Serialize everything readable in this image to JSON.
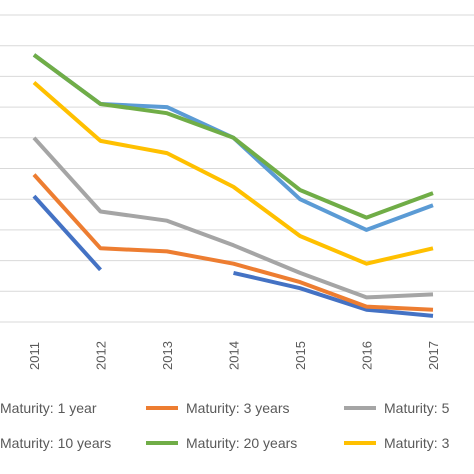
{
  "chart_data": {
    "type": "line",
    "x": [
      "2011",
      "2012",
      "2013",
      "2014",
      "2015",
      "2016",
      "2017"
    ],
    "series": [
      {
        "name": "Maturity: 1 year",
        "color": "#4472C4",
        "values": [
          3.6,
          1.2,
          null,
          1.1,
          0.6,
          -0.1,
          -0.3
        ]
      },
      {
        "name": "Maturity: 3 years",
        "color": "#ED7D31",
        "values": [
          4.3,
          1.9,
          1.8,
          1.4,
          0.8,
          0.0,
          -0.1
        ]
      },
      {
        "name": "Maturity: 5",
        "color": "#A5A5A5",
        "values": [
          5.5,
          3.1,
          2.8,
          2.0,
          1.1,
          0.3,
          0.4
        ]
      },
      {
        "name": "Maturity: 10 years",
        "color": "#5B9BD5",
        "values": [
          8.2,
          6.6,
          6.5,
          5.5,
          3.5,
          2.5,
          3.3
        ]
      },
      {
        "name": "Maturity: 20 years",
        "color": "#70AD47",
        "values": [
          8.2,
          6.6,
          6.3,
          5.5,
          3.8,
          2.9,
          3.7
        ]
      },
      {
        "name": "Maturity: 3",
        "color": "#FFC000",
        "values": [
          7.3,
          5.4,
          5.0,
          3.9,
          2.3,
          1.4,
          1.9
        ]
      }
    ],
    "ylim": [
      -0.5,
      9.5
    ],
    "grid": true,
    "legend_position": "bottom"
  }
}
